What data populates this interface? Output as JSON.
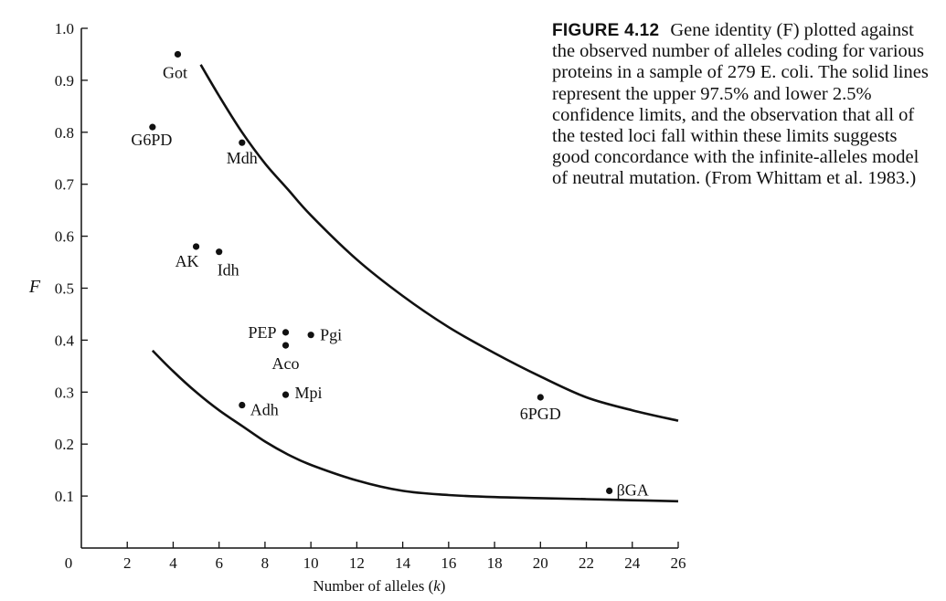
{
  "figure": {
    "label": "FIGURE 4.12",
    "caption": "Gene identity (F) plotted against the observed number of alleles coding for various proteins in a sample of 279 E. coli. The solid lines represent the upper 97.5% and lower 2.5% confidence limits, and the observation that all of the tested loci fall within these limits suggests good concordance with the infinite-alleles model of neutral mutation. (From Whittam et al. 1983.)"
  },
  "chart_data": {
    "type": "scatter",
    "title": "",
    "xlabel": "Number of alleles (k)",
    "ylabel": "F",
    "xlim": [
      0,
      26
    ],
    "ylim": [
      0,
      1.0
    ],
    "x_ticks": [
      "0",
      "2",
      "4",
      "6",
      "8",
      "10",
      "12",
      "14",
      "16",
      "18",
      "20",
      "22",
      "24",
      "26"
    ],
    "y_ticks": [
      "0.1",
      "0.2",
      "0.3",
      "0.4",
      "0.5",
      "0.6",
      "0.7",
      "0.8",
      "0.9",
      "1.0"
    ],
    "grid": false,
    "points": [
      {
        "label": "Got",
        "x": 4.2,
        "y": 0.95
      },
      {
        "label": "G6PD",
        "x": 3.1,
        "y": 0.81
      },
      {
        "label": "Mdh",
        "x": 7.0,
        "y": 0.78
      },
      {
        "label": "AK",
        "x": 5.0,
        "y": 0.58
      },
      {
        "label": "Idh",
        "x": 6.0,
        "y": 0.57
      },
      {
        "label": "PEP",
        "x": 8.9,
        "y": 0.415
      },
      {
        "label": "Pgi",
        "x": 10.0,
        "y": 0.41
      },
      {
        "label": "Aco",
        "x": 8.9,
        "y": 0.39
      },
      {
        "label": "Mpi",
        "x": 8.9,
        "y": 0.295
      },
      {
        "label": "Adh",
        "x": 7.0,
        "y": 0.275
      },
      {
        "label": "6PGD",
        "x": 20.0,
        "y": 0.29
      },
      {
        "label": "βGA",
        "x": 23.0,
        "y": 0.11
      }
    ],
    "curves": [
      {
        "name": "",
        "x": [
          5.2,
          6,
          7,
          8,
          9,
          10,
          12,
          14,
          16,
          18,
          20,
          22,
          24,
          26
        ],
        "y": [
          0.93,
          0.87,
          0.8,
          0.74,
          0.69,
          0.64,
          0.555,
          0.485,
          0.425,
          0.375,
          0.33,
          0.29,
          0.265,
          0.245
        ]
      },
      {
        "name": "",
        "x": [
          3.1,
          4,
          5,
          6,
          7,
          8,
          9,
          10,
          12,
          14,
          16,
          18,
          20,
          22,
          24,
          26
        ],
        "y": [
          0.38,
          0.34,
          0.3,
          0.265,
          0.235,
          0.205,
          0.18,
          0.16,
          0.13,
          0.11,
          0.102,
          0.098,
          0.096,
          0.094,
          0.092,
          0.09
        ]
      }
    ]
  }
}
